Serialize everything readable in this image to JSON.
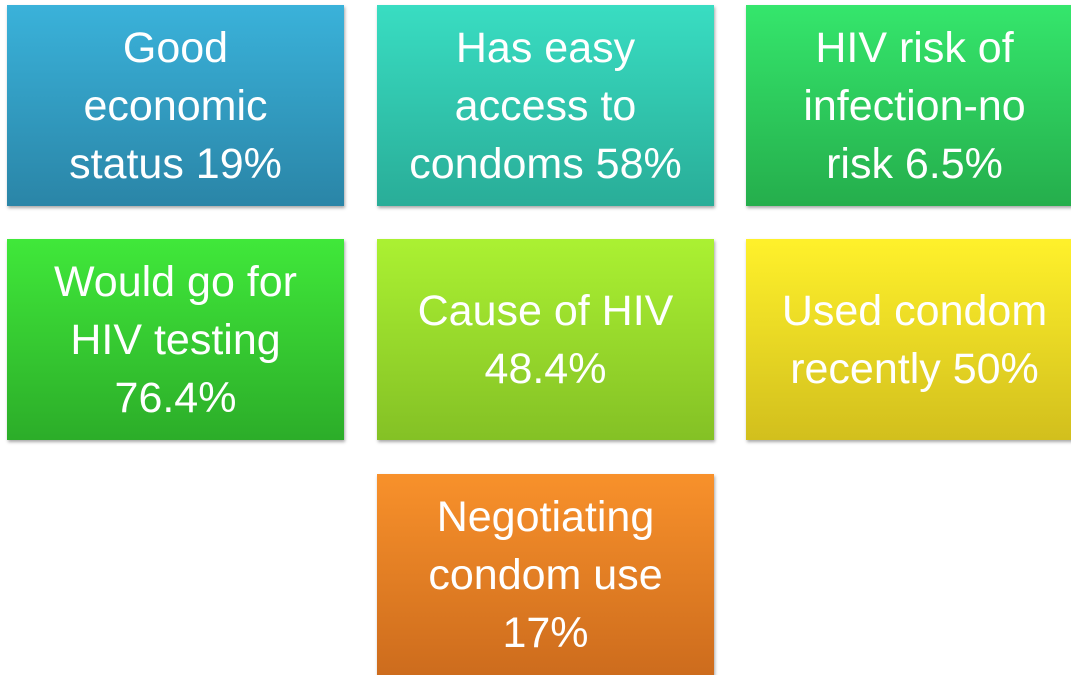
{
  "nodes": [
    {
      "lines": [
        "Good",
        "economic",
        "status 19%"
      ]
    },
    {
      "lines": [
        "Has easy",
        "access to",
        "condoms 58%"
      ]
    },
    {
      "lines": [
        "HIV risk of",
        "infection-no",
        "risk 6.5%"
      ]
    },
    {
      "lines": [
        "Would go for",
        "HIV testing",
        "76.4%"
      ]
    },
    {
      "lines": [
        "Cause of HIV",
        "48.4%"
      ]
    },
    {
      "lines": [
        "Used condom",
        "recently 50%"
      ]
    },
    {
      "lines": [
        "Negotiating",
        "condom use",
        "17%"
      ]
    }
  ]
}
